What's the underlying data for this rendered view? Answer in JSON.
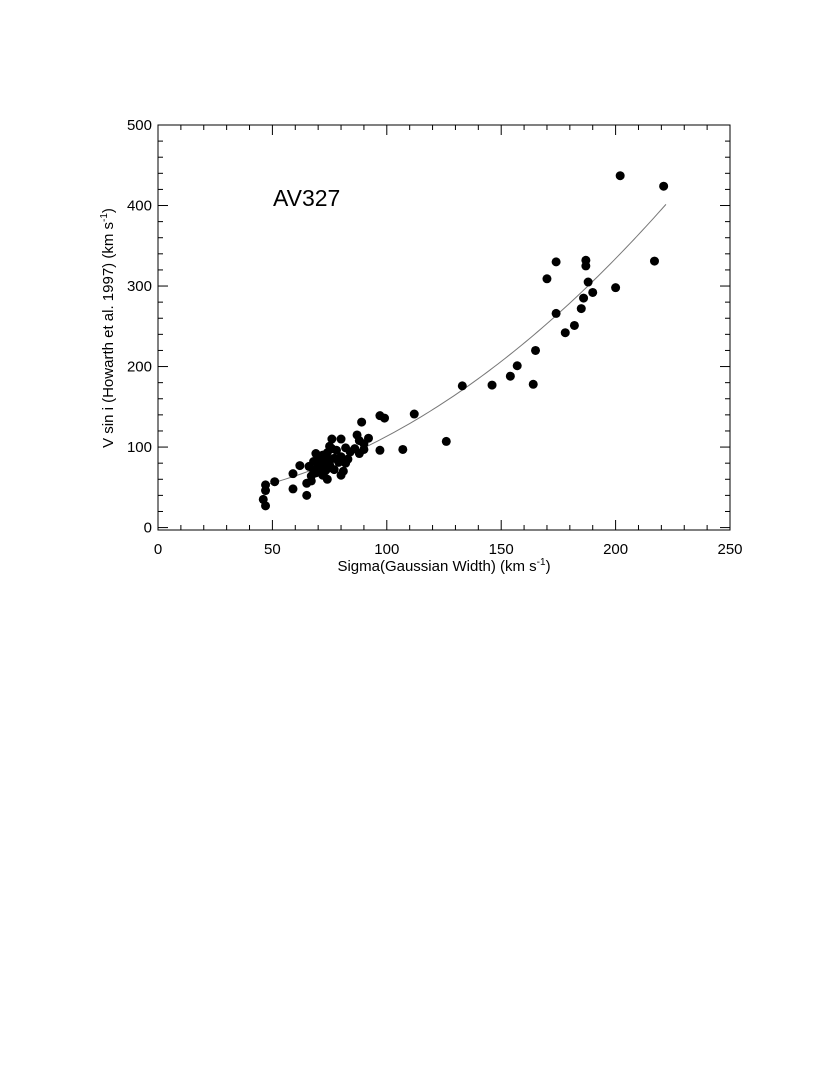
{
  "chart_data": {
    "type": "scatter",
    "annotation": "AV327",
    "xlabel": {
      "main": "Sigma(Gaussian Width) (km s",
      "sup": "-1",
      "end": ")"
    },
    "ylabel": {
      "main": "V sin i (Howarth et al. 1997) (km s",
      "sup": "-1",
      "end": ")"
    },
    "xlim": [
      0,
      250
    ],
    "ylim": [
      -3,
      500
    ],
    "x_ticks": [
      {
        "value": 0,
        "label": "0"
      },
      {
        "value": 50,
        "label": "50"
      },
      {
        "value": 100,
        "label": "100"
      },
      {
        "value": 150,
        "label": "150"
      },
      {
        "value": 200,
        "label": "200"
      },
      {
        "value": 250,
        "label": "250"
      }
    ],
    "y_ticks": [
      {
        "value": 0,
        "label": "0"
      },
      {
        "value": 100,
        "label": "100"
      },
      {
        "value": 200,
        "label": "200"
      },
      {
        "value": 300,
        "label": "300"
      },
      {
        "value": 400,
        "label": "400"
      },
      {
        "value": 500,
        "label": "500"
      }
    ],
    "grid": false,
    "legend": "none",
    "fit_curve": {
      "x_start": 47,
      "x_end": 222
    },
    "points": [
      [
        46,
        35
      ],
      [
        47,
        27
      ],
      [
        47,
        46
      ],
      [
        47,
        53
      ],
      [
        51,
        57
      ],
      [
        59,
        67
      ],
      [
        59,
        48
      ],
      [
        62,
        77
      ],
      [
        65,
        40
      ],
      [
        65,
        55
      ],
      [
        66,
        76
      ],
      [
        67,
        58
      ],
      [
        67,
        64
      ],
      [
        68,
        71
      ],
      [
        68,
        82
      ],
      [
        69,
        92
      ],
      [
        69,
        68
      ],
      [
        70,
        78
      ],
      [
        70,
        88
      ],
      [
        71,
        73
      ],
      [
        71,
        85
      ],
      [
        72,
        65
      ],
      [
        72,
        90
      ],
      [
        73,
        76
      ],
      [
        73,
        81
      ],
      [
        73,
        70
      ],
      [
        74,
        60
      ],
      [
        74,
        93
      ],
      [
        74,
        73
      ],
      [
        75,
        84
      ],
      [
        75,
        101
      ],
      [
        75,
        78
      ],
      [
        76,
        98
      ],
      [
        76,
        110
      ],
      [
        77,
        86
      ],
      [
        77,
        72
      ],
      [
        78,
        96
      ],
      [
        79,
        81
      ],
      [
        80,
        88
      ],
      [
        80,
        110
      ],
      [
        80,
        65
      ],
      [
        81,
        70
      ],
      [
        82,
        80
      ],
      [
        82,
        99
      ],
      [
        83,
        85
      ],
      [
        84,
        94
      ],
      [
        86,
        98
      ],
      [
        87,
        115
      ],
      [
        88,
        92
      ],
      [
        88,
        108
      ],
      [
        89,
        131
      ],
      [
        90,
        97
      ],
      [
        90,
        104
      ],
      [
        92,
        111
      ],
      [
        97,
        96
      ],
      [
        97,
        139
      ],
      [
        99,
        136
      ],
      [
        107,
        97
      ],
      [
        112,
        141
      ],
      [
        126,
        107
      ],
      [
        133,
        176
      ],
      [
        146,
        177
      ],
      [
        154,
        188
      ],
      [
        157,
        201
      ],
      [
        164,
        178
      ],
      [
        165,
        220
      ],
      [
        170,
        309
      ],
      [
        174,
        330
      ],
      [
        174,
        266
      ],
      [
        178,
        242
      ],
      [
        182,
        251
      ],
      [
        185,
        272
      ],
      [
        186,
        285
      ],
      [
        187,
        325
      ],
      [
        187,
        332
      ],
      [
        188,
        305
      ],
      [
        190,
        292
      ],
      [
        200,
        298
      ],
      [
        202,
        437
      ],
      [
        217,
        331
      ],
      [
        221,
        424
      ]
    ]
  }
}
